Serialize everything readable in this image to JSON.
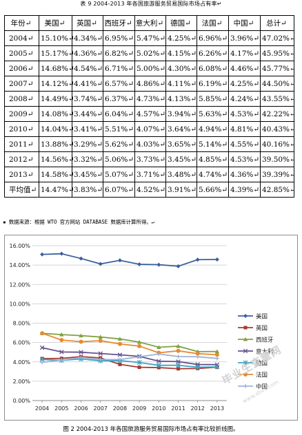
{
  "table": {
    "caption": "表 9 2004-2013 年各国旅游服务贸易国际市场占有率",
    "caption_end": "↵",
    "headers": [
      "年份↵",
      "美国↵",
      "英国↵",
      "西班牙↵",
      "意大利↵",
      "德国↵",
      "法国↵",
      "中国↵",
      "总计↵"
    ],
    "rows": [
      [
        "2004↵",
        "15.10%↵",
        "4.34%↵",
        "6.95%↵",
        "5.47%↵",
        "4.25%↵",
        "6.96%↵",
        "3.96%↵",
        "47.02%↵"
      ],
      [
        "2005↵",
        "15.17%↵",
        "4.36%↵",
        "6.82%↵",
        "5.02%↵",
        "4.15%↵",
        "6.26%↵",
        "4.17%↵",
        "45.95%↵"
      ],
      [
        "2006↵",
        "14.68%↵",
        "4.54%↵",
        "6.71%↵",
        "5.00%↵",
        "4.30%↵",
        "6.08%↵",
        "4.46%↵",
        "45.77%↵"
      ],
      [
        "2007↵",
        "14.12%↵",
        "4.41%↵",
        "6.57%↵",
        "4.86%↵",
        "4.11%↵",
        "6.19%↵",
        "4.25%↵",
        "44.50%↵"
      ],
      [
        "2008↵",
        "14.49%↵",
        "3.74%↵",
        "6.37%↵",
        "4.73%↵",
        "4.13%↵",
        "5.85%↵",
        "4.24%↵",
        "43.55%↵"
      ],
      [
        "2009↵",
        "14.08%↵",
        "3.44%↵",
        "6.04%↵",
        "4.57%↵",
        "3.94%↵",
        "5.63%↵",
        "4.53%↵",
        "42.22%↵"
      ],
      [
        "2010↵",
        "14.04%↵",
        "3.41%↵",
        "5.51%↵",
        "4.07%↵",
        "3.64%↵",
        "4.94%↵",
        "4.81%↵",
        "40.43%↵"
      ],
      [
        "2011↵",
        "13.88%↵",
        "3.29%↵",
        "5.62%↵",
        "4.03%↵",
        "3.65%↵",
        "5.14%↵",
        "4.55%↵",
        "40.16%↵"
      ],
      [
        "2012↵",
        "14.56%↵",
        "3.32%↵",
        "5.06%↵",
        "3.73%↵",
        "3.45%↵",
        "4.85%↵",
        "4.53%↵",
        "39.50%↵"
      ],
      [
        "2013↵",
        "14.58%↵",
        "3.45%↵",
        "5.07%↵",
        "3.71%↵",
        "3.48%↵",
        "4.74%↵",
        "4.36%↵",
        "39.39%↵"
      ],
      [
        "平均值↵",
        "14.47%↵",
        "3.83%↵",
        "6.07%↵",
        "4.52%↵",
        "3.91%↵",
        "5.66%↵",
        "4.39%↵",
        "42.85%↵"
      ]
    ]
  },
  "source_note": "▪ 数据来源：根据 WTO 官方网站 DATABASE 数据库计算所得。↵",
  "figure_caption": "图 2 2004-2013 年各国旅游服务贸易国际市场占有率比较折线图。",
  "watermark": "毕业生查重网",
  "watermark_url": "www.sbvv.com",
  "chart_data": {
    "type": "line",
    "title": "",
    "xlabel": "",
    "ylabel": "",
    "x": [
      "2004",
      "2005",
      "2006",
      "2007",
      "2008",
      "2009",
      "2010",
      "2011",
      "2012",
      "2013"
    ],
    "ylim": [
      0,
      16
    ],
    "yticks": [
      "0.00%",
      "2.00%",
      "4.00%",
      "6.00%",
      "8.00%",
      "10.00%",
      "12.00%",
      "14.00%",
      "16.00%"
    ],
    "ytick_values": [
      0,
      2,
      4,
      6,
      8,
      10,
      12,
      14,
      16
    ],
    "grid": "horizontal",
    "legend_position": "right",
    "series": [
      {
        "name": "美国",
        "color": "#3a5f9e",
        "marker": "diamond",
        "values": [
          15.1,
          15.17,
          14.68,
          14.12,
          14.49,
          14.08,
          14.04,
          13.88,
          14.56,
          14.58
        ]
      },
      {
        "name": "英国",
        "color": "#a33b32",
        "marker": "square",
        "values": [
          4.34,
          4.36,
          4.54,
          4.41,
          3.74,
          3.44,
          3.41,
          3.29,
          3.32,
          3.45
        ]
      },
      {
        "name": "西班牙",
        "color": "#7da23f",
        "marker": "triangle",
        "values": [
          6.95,
          6.82,
          6.71,
          6.57,
          6.37,
          6.04,
          5.51,
          5.62,
          5.06,
          5.07
        ]
      },
      {
        "name": "意大利",
        "color": "#65508f",
        "marker": "x",
        "values": [
          5.47,
          5.02,
          5.0,
          4.86,
          4.73,
          4.57,
          4.07,
          4.03,
          3.73,
          3.71
        ]
      },
      {
        "name": "德国",
        "color": "#3fa3c2",
        "marker": "star",
        "values": [
          4.25,
          4.15,
          4.3,
          4.11,
          4.13,
          3.94,
          3.64,
          3.65,
          3.45,
          3.48
        ]
      },
      {
        "name": "法国",
        "color": "#e8892f",
        "marker": "circle",
        "values": [
          6.96,
          6.26,
          6.08,
          6.19,
          5.85,
          5.63,
          4.94,
          5.14,
          4.85,
          4.74
        ]
      },
      {
        "name": "中国",
        "color": "#9db2d8",
        "marker": "plus",
        "values": [
          3.96,
          4.17,
          4.46,
          4.25,
          4.24,
          4.53,
          4.81,
          4.55,
          4.53,
          4.36
        ]
      }
    ]
  }
}
